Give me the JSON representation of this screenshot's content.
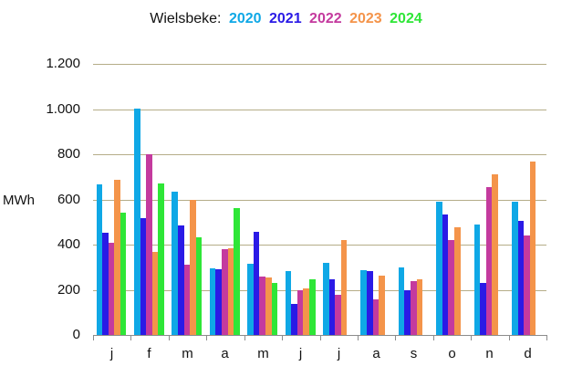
{
  "chart_data": {
    "type": "bar",
    "title": "Wielsbeke: 2020 2021 2022 2023 2024",
    "title_prefix": "Wielsbeke:",
    "xlabel": "",
    "ylabel": "MWh",
    "ylim": [
      0,
      1200
    ],
    "yticks": [
      "0",
      "200",
      "400",
      "600",
      "800",
      "1.000",
      "1.200"
    ],
    "grid": true,
    "legend_position": "title",
    "categories": [
      "j",
      "f",
      "m",
      "a",
      "m",
      "j",
      "j",
      "a",
      "s",
      "o",
      "n",
      "d"
    ],
    "series": [
      {
        "name": "2020",
        "color": "#0fa8e6",
        "values": [
          667,
          1004,
          635,
          295,
          317,
          283,
          320,
          288,
          301,
          588,
          490,
          590
        ]
      },
      {
        "name": "2021",
        "color": "#2a1ae6",
        "values": [
          452,
          517,
          484,
          292,
          458,
          137,
          246,
          283,
          200,
          532,
          231,
          505
        ]
      },
      {
        "name": "2022",
        "color": "#c43a9e",
        "values": [
          408,
          800,
          312,
          380,
          258,
          200,
          179,
          157,
          240,
          420,
          655,
          441
        ]
      },
      {
        "name": "2023",
        "color": "#f4944a",
        "values": [
          687,
          367,
          597,
          384,
          253,
          206,
          420,
          263,
          248,
          478,
          712,
          769
        ]
      },
      {
        "name": "2024",
        "color": "#2ee637",
        "values": [
          541,
          670,
          432,
          563,
          229,
          248,
          null,
          null,
          null,
          null,
          null,
          null
        ]
      }
    ]
  }
}
